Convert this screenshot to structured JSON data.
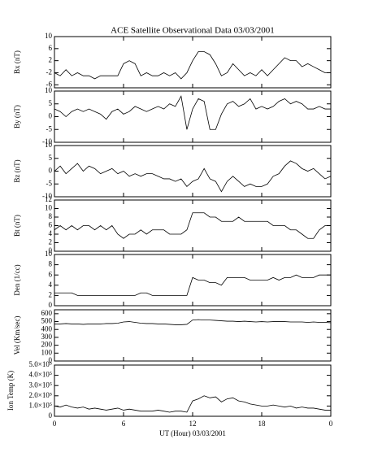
{
  "chart_data": [
    {
      "type": "line",
      "title": "ACE Satellite Observational Data   03/03/2001",
      "ylabel": "Bx (nT)",
      "ylim": [
        -7,
        10
      ],
      "yticks": [
        -6,
        -2,
        2,
        6,
        10
      ],
      "xlim": [
        0,
        24
      ],
      "xticks": [
        0,
        6,
        12,
        18,
        {
          "value": 24,
          "label": "0"
        }
      ],
      "x": [
        0,
        0.5,
        1,
        1.5,
        2,
        2.5,
        3,
        3.5,
        4,
        4.5,
        5,
        5.5,
        6,
        6.5,
        7,
        7.5,
        8,
        8.5,
        9,
        9.5,
        10,
        10.5,
        11,
        11.5,
        12,
        12.5,
        13,
        13.5,
        14,
        14.5,
        15,
        15.5,
        16,
        16.5,
        17,
        17.5,
        18,
        18.5,
        19,
        19.5,
        20,
        20.5,
        21,
        21.5,
        22,
        22.5,
        23,
        23.5,
        24
      ],
      "values": [
        -2,
        -3,
        -1,
        -3,
        -2,
        -3,
        -3,
        -4,
        -3,
        -3,
        -3,
        -3,
        1,
        2,
        1,
        -3,
        -2,
        -3,
        -3,
        -2,
        -3,
        -2,
        -4,
        -2,
        2,
        5,
        5,
        4,
        1,
        -3,
        -2,
        1,
        -1,
        -3,
        -2,
        -3,
        -1,
        -3,
        -1,
        1,
        3,
        2,
        2,
        0,
        1,
        0,
        -1,
        -2,
        -2
      ]
    },
    {
      "type": "line",
      "ylabel": "By (nT)",
      "ylim": [
        -10,
        10
      ],
      "yticks": [
        -10,
        -5,
        0,
        5,
        10
      ],
      "xlim": [
        0,
        24
      ],
      "xticks": [
        0,
        6,
        12,
        18,
        {
          "value": 24,
          "label": "0"
        }
      ],
      "x": [
        0,
        0.5,
        1,
        1.5,
        2,
        2.5,
        3,
        3.5,
        4,
        4.5,
        5,
        5.5,
        6,
        6.5,
        7,
        7.5,
        8,
        8.5,
        9,
        9.5,
        10,
        10.5,
        11,
        11.5,
        12,
        12.5,
        13,
        13.5,
        14,
        14.5,
        15,
        15.5,
        16,
        16.5,
        17,
        17.5,
        18,
        18.5,
        19,
        19.5,
        20,
        20.5,
        21,
        21.5,
        22,
        22.5,
        23,
        23.5,
        24
      ],
      "values": [
        3,
        2,
        0,
        2,
        3,
        2,
        3,
        2,
        1,
        -1,
        2,
        3,
        1,
        2,
        4,
        3,
        2,
        3,
        4,
        3,
        5,
        4,
        8,
        -5,
        3,
        7,
        6,
        -5,
        -5,
        1,
        5,
        6,
        4,
        5,
        7,
        3,
        4,
        3,
        4,
        6,
        7,
        5,
        6,
        5,
        3,
        3,
        4,
        3,
        3
      ]
    },
    {
      "type": "line",
      "ylabel": "Bz (nT)",
      "ylim": [
        -10,
        10
      ],
      "yticks": [
        -10,
        -5,
        0,
        5,
        10
      ],
      "xlim": [
        0,
        24
      ],
      "xticks": [
        0,
        6,
        12,
        18,
        {
          "value": 24,
          "label": "0"
        }
      ],
      "x": [
        0,
        0.5,
        1,
        1.5,
        2,
        2.5,
        3,
        3.5,
        4,
        4.5,
        5,
        5.5,
        6,
        6.5,
        7,
        7.5,
        8,
        8.5,
        9,
        9.5,
        10,
        10.5,
        11,
        11.5,
        12,
        12.5,
        13,
        13.5,
        14,
        14.5,
        15,
        15.5,
        16,
        16.5,
        17,
        17.5,
        18,
        18.5,
        19,
        19.5,
        20,
        20.5,
        21,
        21.5,
        22,
        22.5,
        23,
        23.5,
        24
      ],
      "values": [
        0,
        2,
        -1,
        1,
        3,
        0,
        2,
        1,
        -1,
        0,
        1,
        -1,
        0,
        -2,
        -1,
        -2,
        -1,
        -1,
        -2,
        -3,
        -3,
        -4,
        -3,
        -6,
        -4,
        -3,
        1,
        -3,
        -4,
        -8,
        -4,
        -2,
        -4,
        -6,
        -5,
        -6,
        -6,
        -5,
        -2,
        -1,
        2,
        4,
        3,
        1,
        0,
        1,
        -1,
        -3,
        -2
      ]
    },
    {
      "type": "line",
      "ylabel": "Bt (nT)",
      "ylim": [
        0,
        12
      ],
      "yticks": [
        0,
        2,
        4,
        6,
        8,
        10,
        12
      ],
      "xlim": [
        0,
        24
      ],
      "xticks": [
        0,
        6,
        12,
        18,
        {
          "value": 24,
          "label": "0"
        }
      ],
      "x": [
        0,
        0.5,
        1,
        1.5,
        2,
        2.5,
        3,
        3.5,
        4,
        4.5,
        5,
        5.5,
        6,
        6.5,
        7,
        7.5,
        8,
        8.5,
        9,
        9.5,
        10,
        10.5,
        11,
        11.5,
        12,
        12.5,
        13,
        13.5,
        14,
        14.5,
        15,
        15.5,
        16,
        16.5,
        17,
        17.5,
        18,
        18.5,
        19,
        19.5,
        20,
        20.5,
        21,
        21.5,
        22,
        22.5,
        23,
        23.5,
        24
      ],
      "values": [
        5,
        6,
        5,
        6,
        5,
        6,
        6,
        5,
        6,
        5,
        6,
        4,
        3,
        4,
        4,
        5,
        4,
        5,
        5,
        5,
        4,
        4,
        4,
        5,
        9,
        9,
        9,
        8,
        8,
        7,
        7,
        7,
        8,
        7,
        7,
        7,
        7,
        7,
        6,
        6,
        6,
        5,
        5,
        4,
        3,
        3,
        5,
        6,
        6
      ]
    },
    {
      "type": "line",
      "ylabel": "Den (1/cc)",
      "ylim": [
        0,
        10
      ],
      "yticks": [
        0,
        2,
        4,
        6,
        8,
        10
      ],
      "xlim": [
        0,
        24
      ],
      "xticks": [
        0,
        6,
        12,
        18,
        {
          "value": 24,
          "label": "0"
        }
      ],
      "x": [
        0,
        0.5,
        1,
        1.5,
        2,
        2.5,
        3,
        3.5,
        4,
        4.5,
        5,
        5.5,
        6,
        6.5,
        7,
        7.5,
        8,
        8.5,
        9,
        9.5,
        10,
        10.5,
        11,
        11.5,
        12,
        12.5,
        13,
        13.5,
        14,
        14.5,
        15,
        15.5,
        16,
        16.5,
        17,
        17.5,
        18,
        18.5,
        19,
        19.5,
        20,
        20.5,
        21,
        21.5,
        22,
        22.5,
        23,
        23.5,
        24
      ],
      "values": [
        2.5,
        2.5,
        2.5,
        2.5,
        2,
        2,
        2,
        2,
        2,
        2,
        2,
        2,
        2,
        2,
        2,
        2.5,
        2.5,
        2,
        2,
        2,
        2,
        2,
        2,
        2,
        5.5,
        5,
        5,
        4.5,
        4.5,
        4,
        5.5,
        5.5,
        5.5,
        5.5,
        5,
        5,
        5,
        5,
        5.5,
        5,
        5.5,
        5.5,
        6,
        5.5,
        5.5,
        5.5,
        6,
        6,
        6
      ]
    },
    {
      "type": "line",
      "ylabel": "Vel (Km/sec)",
      "ylim": [
        0,
        650
      ],
      "yticks": [
        0,
        100,
        200,
        300,
        400,
        500,
        600
      ],
      "xlim": [
        0,
        24
      ],
      "xticks": [
        0,
        6,
        12,
        18,
        {
          "value": 24,
          "label": "0"
        }
      ],
      "x": [
        0,
        0.5,
        1,
        1.5,
        2,
        2.5,
        3,
        3.5,
        4,
        4.5,
        5,
        5.5,
        6,
        6.5,
        7,
        7.5,
        8,
        8.5,
        9,
        9.5,
        10,
        10.5,
        11,
        11.5,
        12,
        12.5,
        13,
        13.5,
        14,
        14.5,
        15,
        15.5,
        16,
        16.5,
        17,
        17.5,
        18,
        18.5,
        19,
        19.5,
        20,
        20.5,
        21,
        21.5,
        22,
        22.5,
        23,
        23.5,
        24
      ],
      "values": [
        470,
        470,
        475,
        470,
        470,
        465,
        470,
        470,
        470,
        475,
        475,
        480,
        495,
        500,
        490,
        480,
        475,
        475,
        470,
        470,
        465,
        460,
        460,
        465,
        520,
        525,
        520,
        520,
        515,
        510,
        505,
        505,
        500,
        505,
        500,
        495,
        500,
        495,
        500,
        500,
        500,
        495,
        495,
        495,
        490,
        495,
        490,
        490,
        485
      ]
    },
    {
      "type": "line",
      "ylabel": "Ion Temp (K)",
      "ylim": [
        0,
        500000
      ],
      "yticks": [
        0,
        {
          "value": 100000,
          "label": "1.0×10⁵"
        },
        {
          "value": 200000,
          "label": "2.0×10⁵"
        },
        {
          "value": 300000,
          "label": "3.0×10⁵"
        },
        {
          "value": 400000,
          "label": "4.0×10⁵"
        },
        {
          "value": 500000,
          "label": "5.0×10⁵"
        }
      ],
      "xlabel": "UT (Hour)   03/03/2001",
      "xlim": [
        0,
        24
      ],
      "xticks": [
        0,
        6,
        12,
        18,
        {
          "value": 24,
          "label": "0"
        }
      ],
      "x": [
        0,
        0.5,
        1,
        1.5,
        2,
        2.5,
        3,
        3.5,
        4,
        4.5,
        5,
        5.5,
        6,
        6.5,
        7,
        7.5,
        8,
        8.5,
        9,
        9.5,
        10,
        10.5,
        11,
        11.5,
        12,
        12.5,
        13,
        13.5,
        14,
        14.5,
        15,
        15.5,
        16,
        16.5,
        17,
        17.5,
        18,
        18.5,
        19,
        19.5,
        20,
        20.5,
        21,
        21.5,
        22,
        22.5,
        23,
        23.5,
        24
      ],
      "values": [
        100000,
        90000,
        110000,
        90000,
        80000,
        90000,
        70000,
        80000,
        70000,
        60000,
        70000,
        80000,
        60000,
        70000,
        60000,
        50000,
        50000,
        50000,
        60000,
        50000,
        40000,
        50000,
        50000,
        40000,
        150000,
        170000,
        200000,
        180000,
        190000,
        140000,
        170000,
        180000,
        150000,
        140000,
        120000,
        110000,
        100000,
        100000,
        110000,
        100000,
        90000,
        100000,
        80000,
        90000,
        80000,
        80000,
        70000,
        60000,
        60000
      ]
    }
  ]
}
